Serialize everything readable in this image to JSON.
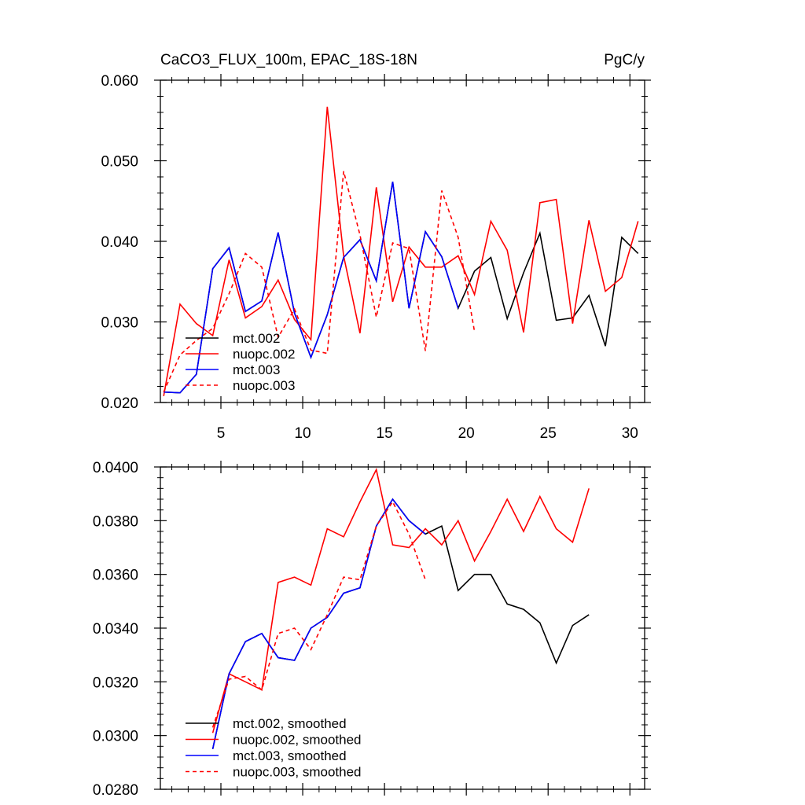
{
  "chart_data": [
    {
      "type": "line",
      "title": "CaCO3_FLUX_100m, EPAC_18S-18N",
      "units": "PgC/y",
      "xlim": [
        1.3,
        30.9
      ],
      "ylim": [
        0.02,
        0.06
      ],
      "yticks": [
        "0.020",
        "0.030",
        "0.040",
        "0.050",
        "0.060"
      ],
      "xticks": [
        "5",
        "10",
        "15",
        "20",
        "25",
        "30"
      ],
      "legend_position": "bottom-left",
      "series": [
        {
          "name": "mct.002",
          "color": "#000000",
          "dash": "solid",
          "x": [
            1.5,
            2.5,
            3.5,
            4.5,
            5.5,
            6.5,
            7.5,
            8.5,
            9.5,
            10.5,
            11.5,
            12.5,
            13.5,
            14.5,
            15.5,
            16.5,
            17.5,
            18.5,
            19.5,
            20.5,
            21.5,
            22.5,
            23.5,
            24.5,
            25.5,
            26.5,
            27.5,
            28.5,
            29.5,
            30.5
          ],
          "y": [
            0.0213,
            0.0212,
            0.0235,
            0.0366,
            0.0392,
            0.0313,
            0.0326,
            0.0411,
            0.0311,
            0.0256,
            0.0309,
            0.038,
            0.0402,
            0.0351,
            0.0474,
            0.0317,
            0.0412,
            0.0381,
            0.0317,
            0.0363,
            0.038,
            0.0304,
            0.0361,
            0.041,
            0.0302,
            0.0305,
            0.0333,
            0.027,
            0.0405,
            0.0385
          ]
        },
        {
          "name": "nuopc.002",
          "color": "#ff0000",
          "dash": "solid",
          "x": [
            1.5,
            2.5,
            3.5,
            4.5,
            5.5,
            6.5,
            7.5,
            8.5,
            9.5,
            10.5,
            11.5,
            12.5,
            13.5,
            14.5,
            15.5,
            16.5,
            17.5,
            18.5,
            19.5,
            20.5,
            21.5,
            22.5,
            23.5,
            24.5,
            25.5,
            26.5,
            27.5,
            28.5,
            29.5,
            30.5
          ],
          "y": [
            0.0208,
            0.0322,
            0.0298,
            0.0283,
            0.0377,
            0.0305,
            0.0319,
            0.0352,
            0.0303,
            0.0278,
            0.0567,
            0.0382,
            0.0286,
            0.0467,
            0.0325,
            0.0393,
            0.0368,
            0.0368,
            0.0382,
            0.0334,
            0.0425,
            0.0389,
            0.0287,
            0.0448,
            0.0452,
            0.0298,
            0.0426,
            0.0338,
            0.0355,
            0.0425
          ]
        },
        {
          "name": "mct.003",
          "color": "#0000ff",
          "dash": "solid",
          "x": [
            1.5,
            2.5,
            3.5,
            4.5,
            5.5,
            6.5,
            7.5,
            8.5,
            9.5,
            10.5,
            11.5,
            12.5,
            13.5,
            14.5,
            15.5,
            16.5,
            17.5,
            18.5,
            19.5
          ],
          "y": [
            0.0213,
            0.0212,
            0.0235,
            0.0366,
            0.0392,
            0.0313,
            0.0326,
            0.0411,
            0.0311,
            0.0256,
            0.0309,
            0.038,
            0.0402,
            0.0351,
            0.0474,
            0.0317,
            0.0412,
            0.0381,
            0.0317
          ]
        },
        {
          "name": "nuopc.003",
          "color": "#ff0000",
          "dash": "dashed",
          "x": [
            1.5,
            2.5,
            3.5,
            4.5,
            5.5,
            6.5,
            7.5,
            8.5,
            9.5,
            10.5,
            11.5,
            12.5,
            13.5,
            14.5,
            15.5,
            16.5,
            17.5,
            18.5,
            19.5,
            20.5
          ],
          "y": [
            0.0213,
            0.0259,
            0.0277,
            0.0292,
            0.0335,
            0.0385,
            0.0368,
            0.0281,
            0.0316,
            0.0265,
            0.0261,
            0.0487,
            0.0408,
            0.0306,
            0.0398,
            0.0391,
            0.0264,
            0.0463,
            0.0405,
            0.0288
          ]
        }
      ]
    },
    {
      "type": "line",
      "title": "",
      "xlim": [
        1.3,
        30.9
      ],
      "ylim": [
        0.028,
        0.04
      ],
      "yticks": [
        "0.0280",
        "0.0300",
        "0.0320",
        "0.0340",
        "0.0360",
        "0.0380",
        "0.0400"
      ],
      "legend_position": "bottom-left",
      "series": [
        {
          "name": "mct.002, smoothed",
          "color": "#000000",
          "dash": "solid",
          "x": [
            4.5,
            5.5,
            6.5,
            7.5,
            8.5,
            9.5,
            10.5,
            11.5,
            12.5,
            13.5,
            14.5,
            15.5,
            16.5,
            17.5,
            18.5,
            19.5,
            20.5,
            21.5,
            22.5,
            23.5,
            24.5,
            25.5,
            26.5,
            27.5
          ],
          "y": [
            0.0295,
            0.0323,
            0.0335,
            0.0338,
            0.0329,
            0.0328,
            0.034,
            0.0344,
            0.0353,
            0.0355,
            0.0378,
            0.0388,
            0.038,
            0.0375,
            0.0378,
            0.0354,
            0.036,
            0.036,
            0.0349,
            0.0347,
            0.0342,
            0.0327,
            0.0341,
            0.0345
          ]
        },
        {
          "name": "nuopc.002, smoothed",
          "color": "#ff0000",
          "dash": "solid",
          "x": [
            4.5,
            5.5,
            6.5,
            7.5,
            8.5,
            9.5,
            10.5,
            11.5,
            12.5,
            13.5,
            14.5,
            15.5,
            16.5,
            17.5,
            18.5,
            19.5,
            20.5,
            21.5,
            22.5,
            23.5,
            24.5,
            25.5,
            26.5,
            27.5
          ],
          "y": [
            0.0301,
            0.0323,
            0.032,
            0.0317,
            0.0357,
            0.0359,
            0.0356,
            0.0377,
            0.0374,
            0.0387,
            0.0399,
            0.0371,
            0.037,
            0.0377,
            0.0371,
            0.038,
            0.0365,
            0.0376,
            0.0388,
            0.0376,
            0.0389,
            0.0377,
            0.0372,
            0.0392
          ]
        },
        {
          "name": "mct.003, smoothed",
          "color": "#0000ff",
          "dash": "solid",
          "x": [
            4.5,
            5.5,
            6.5,
            7.5,
            8.5,
            9.5,
            10.5,
            11.5,
            12.5,
            13.5,
            14.5,
            15.5,
            16.5,
            17.5
          ],
          "y": [
            0.0295,
            0.0323,
            0.0335,
            0.0338,
            0.0329,
            0.0328,
            0.034,
            0.0344,
            0.0353,
            0.0355,
            0.0378,
            0.0388,
            0.038,
            0.0375
          ]
        },
        {
          "name": "nuopc.003, smoothed",
          "color": "#ff0000",
          "dash": "dashed",
          "x": [
            4.5,
            5.5,
            6.5,
            7.5,
            8.5,
            9.5,
            10.5,
            11.5,
            12.5,
            13.5,
            14.5,
            15.5,
            16.5,
            17.5
          ],
          "y": [
            0.0303,
            0.0321,
            0.0322,
            0.0317,
            0.0338,
            0.034,
            0.0332,
            0.0345,
            0.0359,
            0.0358,
            0.0378,
            0.0387,
            0.0375,
            0.0358
          ]
        }
      ]
    }
  ]
}
